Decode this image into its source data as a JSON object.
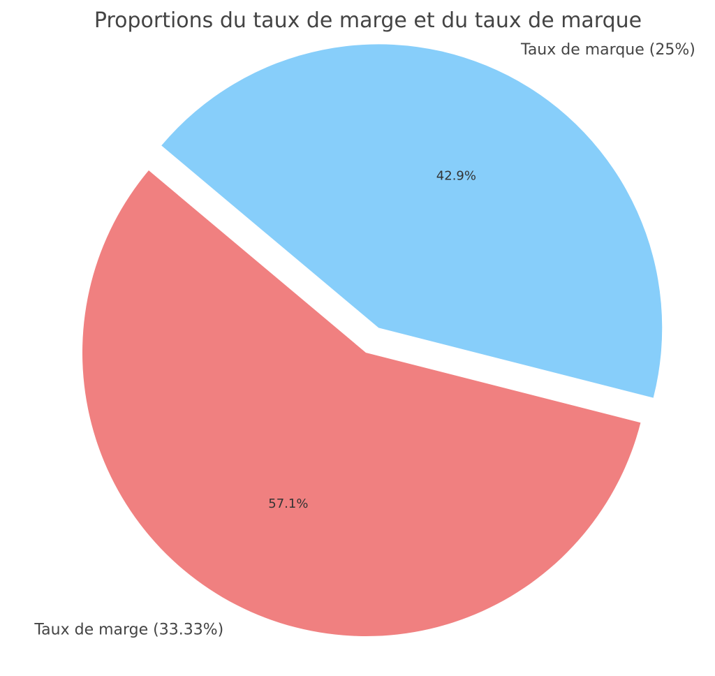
{
  "chart_data": {
    "type": "pie",
    "title": "Proportions du taux de marge et du taux de marque",
    "categories": [
      "Taux de marge (33.33%)",
      "Taux de marque (25%)"
    ],
    "values": [
      33.33,
      25
    ],
    "percent_labels": [
      "57.1%",
      "42.9%"
    ],
    "colors": [
      "#F08080",
      "#87CEFA"
    ],
    "exploded": [
      false,
      true
    ],
    "legend": "none"
  }
}
